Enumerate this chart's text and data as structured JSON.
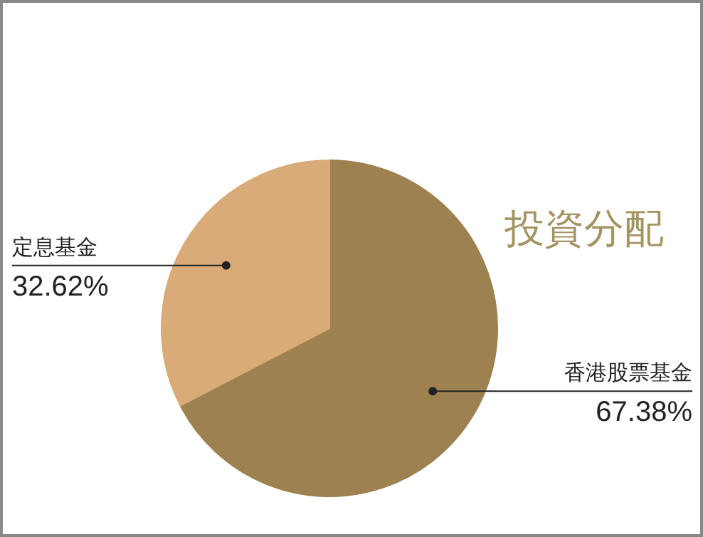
{
  "chart_data": {
    "type": "pie",
    "title": "投資分配",
    "categories": [
      "香港股票基金",
      "定息基金"
    ],
    "values": [
      67.38,
      32.62
    ],
    "value_labels": [
      "67.38%",
      "32.62%"
    ],
    "colors": [
      "#9e8150",
      "#d8ab78"
    ]
  }
}
